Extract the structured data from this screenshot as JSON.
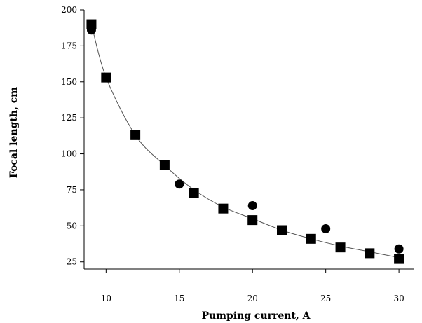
{
  "chart_data": {
    "type": "scatter",
    "xlabel": "Pumping current, A",
    "ylabel": "Focal length, cm",
    "xlim": [
      8.5,
      31
    ],
    "ylim": [
      20,
      200
    ],
    "x_ticks": [
      10,
      15,
      20,
      25,
      30
    ],
    "y_ticks": [
      25,
      50,
      75,
      100,
      125,
      150,
      175,
      200
    ],
    "grid": false,
    "legend": "none",
    "series": [
      {
        "marker": "square",
        "points": [
          {
            "x": 9,
            "y": 190
          },
          {
            "x": 10,
            "y": 153
          },
          {
            "x": 12,
            "y": 113
          },
          {
            "x": 14,
            "y": 92
          },
          {
            "x": 16,
            "y": 73
          },
          {
            "x": 18,
            "y": 62
          },
          {
            "x": 20,
            "y": 54
          },
          {
            "x": 22,
            "y": 47
          },
          {
            "x": 24,
            "y": 41
          },
          {
            "x": 26,
            "y": 35
          },
          {
            "x": 28,
            "y": 31
          },
          {
            "x": 30,
            "y": 27
          }
        ]
      },
      {
        "marker": "circle",
        "points": [
          {
            "x": 9,
            "y": 186
          },
          {
            "x": 15,
            "y": 79
          },
          {
            "x": 20,
            "y": 64
          },
          {
            "x": 25,
            "y": 48
          },
          {
            "x": 30,
            "y": 34
          }
        ]
      }
    ],
    "fit_curve": {
      "points": [
        {
          "x": 9,
          "y": 190
        },
        {
          "x": 10,
          "y": 153
        },
        {
          "x": 12,
          "y": 113
        },
        {
          "x": 14,
          "y": 92
        },
        {
          "x": 16,
          "y": 75
        },
        {
          "x": 18,
          "y": 63
        },
        {
          "x": 20,
          "y": 55
        },
        {
          "x": 22,
          "y": 47
        },
        {
          "x": 24,
          "y": 41
        },
        {
          "x": 26,
          "y": 36
        },
        {
          "x": 28,
          "y": 32
        },
        {
          "x": 30,
          "y": 28
        }
      ]
    }
  }
}
